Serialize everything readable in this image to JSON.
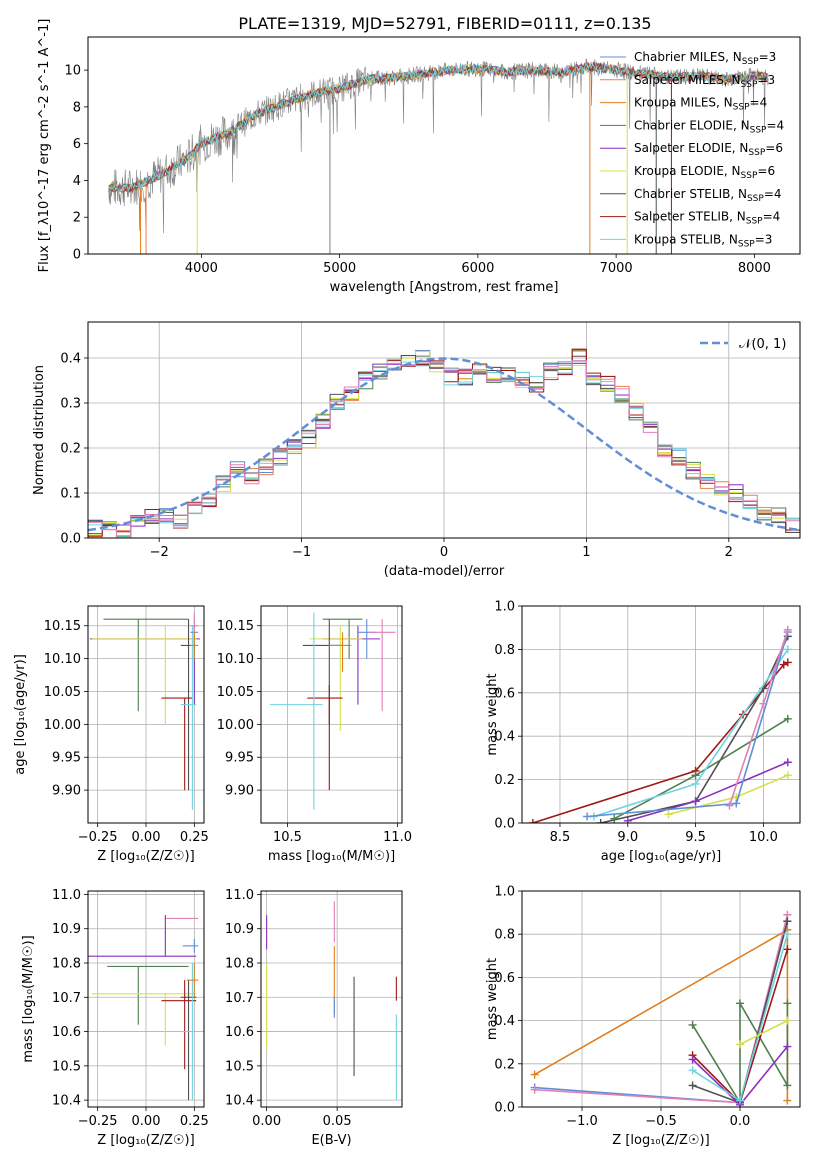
{
  "figure_title": "PLATE=1319, MJD=52791, FIBERID=0111, z=0.135",
  "colors": {
    "chabrier_miles": "#5f8fd6",
    "salpeter_miles": "#e9824a",
    "kroupa_miles": "#e07f20",
    "chabrier_elodie": "#4f7f4f",
    "salpeter_elodie": "#8a2fc0",
    "kroupa_elodie": "#d6e04a",
    "chabrier_stelib": "#505050",
    "salpeter_stelib": "#a01818",
    "kroupa_stelib": "#6fd3e0",
    "pink": "#e27fb6",
    "data": "#808080",
    "normal_curve": "#5f8fd6",
    "grid": "#b0b0b0"
  },
  "chart_data": [
    {
      "type": "line",
      "title": "PLATE=1319, MJD=52791, FIBERID=0111, z=0.135",
      "xlabel": "wavelength [Angstrom, rest frame]",
      "ylabel": "Flux [f_λ10^-17 erg cm^-2 s^-1 A^-1]",
      "xlim": [
        3180,
        8330
      ],
      "ylim": [
        0,
        11.8
      ],
      "xticks": [
        "4000",
        "5000",
        "6000",
        "7000",
        "8000"
      ],
      "yticks": [
        "0",
        "2",
        "4",
        "6",
        "8",
        "10"
      ],
      "x": [
        3330,
        3500,
        3700,
        3900,
        4000,
        4200,
        4400,
        4600,
        4800,
        5000,
        5200,
        5400,
        5600,
        5800,
        6000,
        6200,
        6400,
        6600,
        6800,
        7000,
        7200,
        7400,
        7600,
        7800,
        8000,
        8100
      ],
      "model_y": [
        3.6,
        3.6,
        4.3,
        5.2,
        6.0,
        6.6,
        7.6,
        8.2,
        8.7,
        9.0,
        9.5,
        9.6,
        9.8,
        10.0,
        10.1,
        9.9,
        10.0,
        9.9,
        10.2,
        10.0,
        9.8,
        9.6,
        9.7,
        9.5,
        9.7,
        9.6
      ],
      "legend": [
        {
          "label": "Chabrier MILES, N",
          "sub": "SSP",
          "suffix": "=3",
          "color_key": "chabrier_miles"
        },
        {
          "label": "Salpeter MILES, N",
          "sub": "SSP",
          "suffix": "=3",
          "color_key": "salpeter_miles"
        },
        {
          "label": "Kroupa MILES, N",
          "sub": "SSP",
          "suffix": "=4",
          "color_key": "kroupa_miles"
        },
        {
          "label": "Chabrier ELODIE, N",
          "sub": "SSP",
          "suffix": "=4",
          "color_key": "chabrier_elodie"
        },
        {
          "label": "Salpeter ELODIE, N",
          "sub": "SSP",
          "suffix": "=6",
          "color_key": "salpeter_elodie"
        },
        {
          "label": "Kroupa ELODIE, N",
          "sub": "SSP",
          "suffix": "=6",
          "color_key": "kroupa_elodie"
        },
        {
          "label": "Chabrier STELIB, N",
          "sub": "SSP",
          "suffix": "=4",
          "color_key": "chabrier_stelib"
        },
        {
          "label": "Salpeter STELIB, N",
          "sub": "SSP",
          "suffix": "=4",
          "color_key": "salpeter_stelib"
        },
        {
          "label": "Kroupa STELIB, N",
          "sub": "SSP",
          "suffix": "=3",
          "color_key": "kroupa_stelib"
        }
      ]
    },
    {
      "type": "histogram",
      "xlabel": "(data-model)/error",
      "ylabel": "Normed distribution",
      "xlim": [
        -2.5,
        2.5
      ],
      "ylim": [
        0,
        0.48
      ],
      "xticks": [
        "−2",
        "−1",
        "0",
        "1",
        "2"
      ],
      "yticks": [
        "0.0",
        "0.1",
        "0.2",
        "0.3",
        "0.4"
      ],
      "bin_width": 0.1,
      "bins_start": -2.5,
      "values": [
        0.02,
        0.02,
        0.01,
        0.03,
        0.05,
        0.05,
        0.04,
        0.06,
        0.08,
        0.12,
        0.15,
        0.14,
        0.16,
        0.18,
        0.2,
        0.22,
        0.26,
        0.3,
        0.32,
        0.35,
        0.37,
        0.38,
        0.39,
        0.4,
        0.38,
        0.36,
        0.36,
        0.37,
        0.36,
        0.36,
        0.35,
        0.34,
        0.37,
        0.38,
        0.4,
        0.36,
        0.34,
        0.32,
        0.28,
        0.24,
        0.2,
        0.18,
        0.15,
        0.13,
        0.11,
        0.1,
        0.08,
        0.06,
        0.05,
        0.03
      ],
      "curve_label": "𝒩(0, 1)"
    },
    {
      "type": "errorbar",
      "id": "age_vs_Z",
      "xlabel": "Z [log₁₀(Z/Z☉)]",
      "ylabel": "age  [log₁₀(age/yr)]",
      "xlim": [
        -0.3,
        0.3
      ],
      "ylim": [
        9.85,
        10.18
      ],
      "xticks": [
        "−0.25",
        "0.00",
        "0.25"
      ],
      "yticks": [
        "9.90",
        "9.95",
        "10.00",
        "10.05",
        "10.10",
        "10.15"
      ],
      "points": [
        {
          "x": -0.04,
          "y": 10.16,
          "xerr": [
            0.18,
            0.26
          ],
          "yerr": [
            0.14,
            0.0
          ],
          "color_key": "chabrier_elodie"
        },
        {
          "x": 0.25,
          "y": 10.13,
          "xerr": [
            0.54,
            0.03
          ],
          "yerr": [
            0.1,
            0.02
          ],
          "color_key": "salpeter_elodie"
        },
        {
          "x": 0.1,
          "y": 10.13,
          "xerr": [
            0.38,
            0.16
          ],
          "yerr": [
            0.13,
            0.02
          ],
          "color_key": "kroupa_elodie"
        },
        {
          "x": 0.22,
          "y": 10.12,
          "xerr": [
            0.04,
            0.04
          ],
          "yerr": [
            0.22,
            0.04
          ],
          "color_key": "chabrier_stelib"
        },
        {
          "x": 0.2,
          "y": 10.04,
          "xerr": [
            0.12,
            0.04
          ],
          "yerr": [
            0.14,
            0.0
          ],
          "color_key": "salpeter_stelib"
        },
        {
          "x": 0.24,
          "y": 10.03,
          "xerr": [
            0.06,
            0.02
          ],
          "yerr": [
            0.16,
            0.12
          ],
          "color_key": "kroupa_stelib"
        },
        {
          "x": 0.25,
          "y": 10.14,
          "xerr": [
            0.02,
            0.02
          ],
          "yerr": [
            0.04,
            0.02
          ],
          "color_key": "chabrier_miles"
        },
        {
          "x": 0.25,
          "y": 10.15,
          "xerr": [
            0.02,
            0.02
          ],
          "yerr": [
            0.02,
            0.02
          ],
          "color_key": "pink"
        },
        {
          "x": 0.25,
          "y": 10.12,
          "xerr": [
            0.02,
            0.02
          ],
          "yerr": [
            0.02,
            0.02
          ],
          "color_key": "kroupa_miles"
        }
      ]
    },
    {
      "type": "errorbar",
      "id": "age_vs_mass",
      "xlabel": "mass [log₁₀(M/M☉)]",
      "ylabel": "",
      "xlim": [
        10.38,
        11.02
      ],
      "ylim": [
        9.85,
        10.18
      ],
      "xticks": [
        "10.5",
        "11.0"
      ],
      "yticks": [
        "9.90",
        "9.95",
        "10.00",
        "10.05",
        "10.10",
        "10.15"
      ],
      "points": [
        {
          "x": 10.78,
          "y": 10.16,
          "xerr": [
            0.12,
            0.06
          ],
          "yerr": [
            0.06,
            0.0
          ],
          "color_key": "chabrier_elodie"
        },
        {
          "x": 10.82,
          "y": 10.13,
          "xerr": [
            0.16,
            0.1
          ],
          "yerr": [
            0.1,
            0.02
          ],
          "color_key": "salpeter_elodie"
        },
        {
          "x": 10.74,
          "y": 10.13,
          "xerr": [
            0.14,
            0.1
          ],
          "yerr": [
            0.14,
            0.02
          ],
          "color_key": "kroupa_elodie"
        },
        {
          "x": 10.69,
          "y": 10.12,
          "xerr": [
            0.12,
            0.06
          ],
          "yerr": [
            0.12,
            0.04
          ],
          "color_key": "chabrier_stelib"
        },
        {
          "x": 10.69,
          "y": 10.04,
          "xerr": [
            0.1,
            0.06
          ],
          "yerr": [
            0.14,
            0.02
          ],
          "color_key": "salpeter_stelib"
        },
        {
          "x": 10.62,
          "y": 10.03,
          "xerr": [
            0.2,
            0.04
          ],
          "yerr": [
            0.16,
            0.14
          ],
          "color_key": "kroupa_stelib"
        },
        {
          "x": 10.86,
          "y": 10.14,
          "xerr": [
            0.04,
            0.04
          ],
          "yerr": [
            0.04,
            0.02
          ],
          "color_key": "chabrier_miles"
        },
        {
          "x": 10.93,
          "y": 10.14,
          "xerr": [
            0.06,
            0.06
          ],
          "yerr": [
            0.12,
            0.02
          ],
          "color_key": "pink"
        },
        {
          "x": 10.75,
          "y": 10.12,
          "xerr": [
            0.06,
            0.04
          ],
          "yerr": [
            0.04,
            0.02
          ],
          "color_key": "kroupa_miles"
        }
      ]
    },
    {
      "type": "line",
      "id": "massweight_vs_age",
      "xlabel": "age  [log₁₀(age/yr)]",
      "ylabel": "mass weight",
      "xlim": [
        8.22,
        10.27
      ],
      "ylim": [
        0,
        1.0
      ],
      "xticks": [
        "8.5",
        "9.0",
        "9.5",
        "10.0"
      ],
      "yticks": [
        "0.0",
        "0.2",
        "0.4",
        "0.6",
        "0.8",
        "1.0"
      ],
      "series": [
        {
          "color_key": "salpeter_stelib",
          "x": [
            8.3,
            9.5,
            9.85,
            10.15,
            10.18
          ],
          "y": [
            0.0,
            0.24,
            0.5,
            0.73,
            0.74
          ]
        },
        {
          "color_key": "chabrier_stelib",
          "x": [
            8.8,
            9.5,
            10.0,
            10.18
          ],
          "y": [
            0.0,
            0.1,
            0.62,
            0.86
          ]
        },
        {
          "color_key": "chabrier_elodie",
          "x": [
            8.9,
            9.5,
            10.18
          ],
          "y": [
            0.02,
            0.22,
            0.48
          ]
        },
        {
          "color_key": "salpeter_elodie",
          "x": [
            9.0,
            9.5,
            10.18
          ],
          "y": [
            0.01,
            0.1,
            0.28
          ]
        },
        {
          "color_key": "kroupa_elodie",
          "x": [
            9.3,
            9.8,
            10.18
          ],
          "y": [
            0.04,
            0.12,
            0.22
          ]
        },
        {
          "color_key": "kroupa_stelib",
          "x": [
            8.75,
            9.5,
            10.18
          ],
          "y": [
            0.03,
            0.18,
            0.8
          ]
        },
        {
          "color_key": "chabrier_miles",
          "x": [
            8.7,
            9.8,
            10.18
          ],
          "y": [
            0.03,
            0.09,
            0.88
          ]
        },
        {
          "color_key": "pink",
          "x": [
            9.75,
            10.0,
            10.18
          ],
          "y": [
            0.08,
            0.55,
            0.89
          ]
        }
      ]
    },
    {
      "type": "errorbar",
      "id": "mass_vs_Z",
      "xlabel": "Z [log₁₀(Z/Z☉)]",
      "ylabel": "mass [log₁₀(M/M☉)]",
      "xlim": [
        -0.3,
        0.3
      ],
      "ylim": [
        10.38,
        11.01
      ],
      "xticks": [
        "−0.25",
        "0.00",
        "0.25"
      ],
      "yticks": [
        "10.4",
        "10.5",
        "10.6",
        "10.7",
        "10.8",
        "10.9",
        "11.0"
      ],
      "points": [
        {
          "x": 0.25,
          "y": 10.93,
          "xerr": [
            0.15,
            0.02
          ],
          "yerr": [
            0.0,
            0.0
          ],
          "color_key": "pink"
        },
        {
          "x": 0.1,
          "y": 10.82,
          "xerr": [
            0.4,
            0.16
          ],
          "yerr": [
            0.0,
            0.12
          ],
          "color_key": "salpeter_elodie"
        },
        {
          "x": 0.25,
          "y": 10.85,
          "xerr": [
            0.06,
            0.02
          ],
          "yerr": [
            0.02,
            0.02
          ],
          "color_key": "chabrier_miles"
        },
        {
          "x": -0.04,
          "y": 10.79,
          "xerr": [
            0.16,
            0.26
          ],
          "yerr": [
            0.17,
            0.0
          ],
          "color_key": "chabrier_elodie"
        },
        {
          "x": 0.1,
          "y": 10.71,
          "xerr": [
            0.38,
            0.16
          ],
          "yerr": [
            0.15,
            0.0
          ],
          "color_key": "kroupa_elodie"
        },
        {
          "x": 0.22,
          "y": 10.7,
          "xerr": [
            0.04,
            0.04
          ],
          "yerr": [
            0.3,
            0.05
          ],
          "color_key": "chabrier_stelib"
        },
        {
          "x": 0.2,
          "y": 10.69,
          "xerr": [
            0.12,
            0.06
          ],
          "yerr": [
            0.2,
            0.06
          ],
          "color_key": "salpeter_stelib"
        },
        {
          "x": 0.24,
          "y": 10.6,
          "xerr": [
            0.06,
            0.02
          ],
          "yerr": [
            0.2,
            0.2
          ],
          "color_key": "kroupa_stelib"
        },
        {
          "x": 0.25,
          "y": 10.75,
          "xerr": [
            0.04,
            0.02
          ],
          "yerr": [
            0.05,
            0.05
          ],
          "color_key": "kroupa_miles"
        }
      ]
    },
    {
      "type": "errorbar",
      "id": "mass_vs_ebv",
      "xlabel": "E(B-V)",
      "ylabel": "",
      "xlim": [
        -0.004,
        0.096
      ],
      "ylim": [
        10.38,
        11.01
      ],
      "xticks": [
        "0.00",
        "0.05"
      ],
      "yticks": [
        "10.4",
        "10.5",
        "10.6",
        "10.7",
        "10.8",
        "10.9",
        "11.0"
      ],
      "points": [
        {
          "x": 0.0,
          "y": 10.88,
          "xerr": [
            0,
            0
          ],
          "yerr": [
            0.04,
            0.06
          ],
          "color_key": "salpeter_elodie"
        },
        {
          "x": 0.0,
          "y": 10.7,
          "xerr": [
            0,
            0
          ],
          "yerr": [
            0.15,
            0.1
          ],
          "color_key": "kroupa_elodie"
        },
        {
          "x": 0.048,
          "y": 10.9,
          "xerr": [
            0,
            0
          ],
          "yerr": [
            0.04,
            0.08
          ],
          "color_key": "pink"
        },
        {
          "x": 0.048,
          "y": 10.77,
          "xerr": [
            0,
            0
          ],
          "yerr": [
            0.12,
            0.08
          ],
          "color_key": "kroupa_miles"
        },
        {
          "x": 0.048,
          "y": 10.7,
          "xerr": [
            0,
            0
          ],
          "yerr": [
            0.06,
            0.0
          ],
          "color_key": "chabrier_miles"
        },
        {
          "x": 0.062,
          "y": 10.62,
          "xerr": [
            0,
            0
          ],
          "yerr": [
            0.15,
            0.14
          ],
          "color_key": "chabrier_stelib"
        },
        {
          "x": 0.092,
          "y": 10.72,
          "xerr": [
            0,
            0
          ],
          "yerr": [
            0.03,
            0.04
          ],
          "color_key": "salpeter_stelib"
        },
        {
          "x": 0.092,
          "y": 10.55,
          "xerr": [
            0,
            0
          ],
          "yerr": [
            0.15,
            0.1
          ],
          "color_key": "kroupa_stelib"
        }
      ]
    },
    {
      "type": "line",
      "id": "massweight_vs_Z",
      "xlabel": "Z [log₁₀(Z/Z☉)]",
      "ylabel": "mass weight",
      "xlim": [
        -1.38,
        0.38
      ],
      "ylim": [
        0,
        1.0
      ],
      "xticks": [
        "−1.0",
        "−0.5",
        "0.0"
      ],
      "yticks": [
        "0.0",
        "0.2",
        "0.4",
        "0.6",
        "0.8",
        "1.0"
      ],
      "series": [
        {
          "color_key": "kroupa_miles",
          "x": [
            -1.3,
            0.3,
            0.3
          ],
          "y": [
            0.15,
            0.82,
            0.03
          ]
        },
        {
          "color_key": "chabrier_miles",
          "x": [
            -1.3,
            0.0,
            0.3
          ],
          "y": [
            0.09,
            0.02,
            0.86
          ]
        },
        {
          "color_key": "pink",
          "x": [
            -1.3,
            0.0,
            0.3
          ],
          "y": [
            0.08,
            0.02,
            0.89
          ]
        },
        {
          "color_key": "chabrier_elodie",
          "x": [
            -0.3,
            0.0,
            0.0,
            0.3,
            0.3
          ],
          "y": [
            0.38,
            0.02,
            0.48,
            0.1,
            0.48
          ]
        },
        {
          "color_key": "salpeter_stelib",
          "x": [
            -0.3,
            0.0,
            0.3
          ],
          "y": [
            0.24,
            0.02,
            0.73
          ]
        },
        {
          "color_key": "chabrier_stelib",
          "x": [
            -0.3,
            0.0,
            0.3
          ],
          "y": [
            0.1,
            0.02,
            0.86
          ]
        },
        {
          "color_key": "salpeter_elodie",
          "x": [
            -0.3,
            0.0,
            0.3
          ],
          "y": [
            0.22,
            0.01,
            0.28
          ]
        },
        {
          "color_key": "kroupa_stelib",
          "x": [
            -0.3,
            0.0,
            0.3
          ],
          "y": [
            0.17,
            0.03,
            0.8
          ]
        },
        {
          "color_key": "kroupa_elodie",
          "x": [
            0.0,
            0.3
          ],
          "y": [
            0.29,
            0.4
          ]
        }
      ]
    }
  ]
}
